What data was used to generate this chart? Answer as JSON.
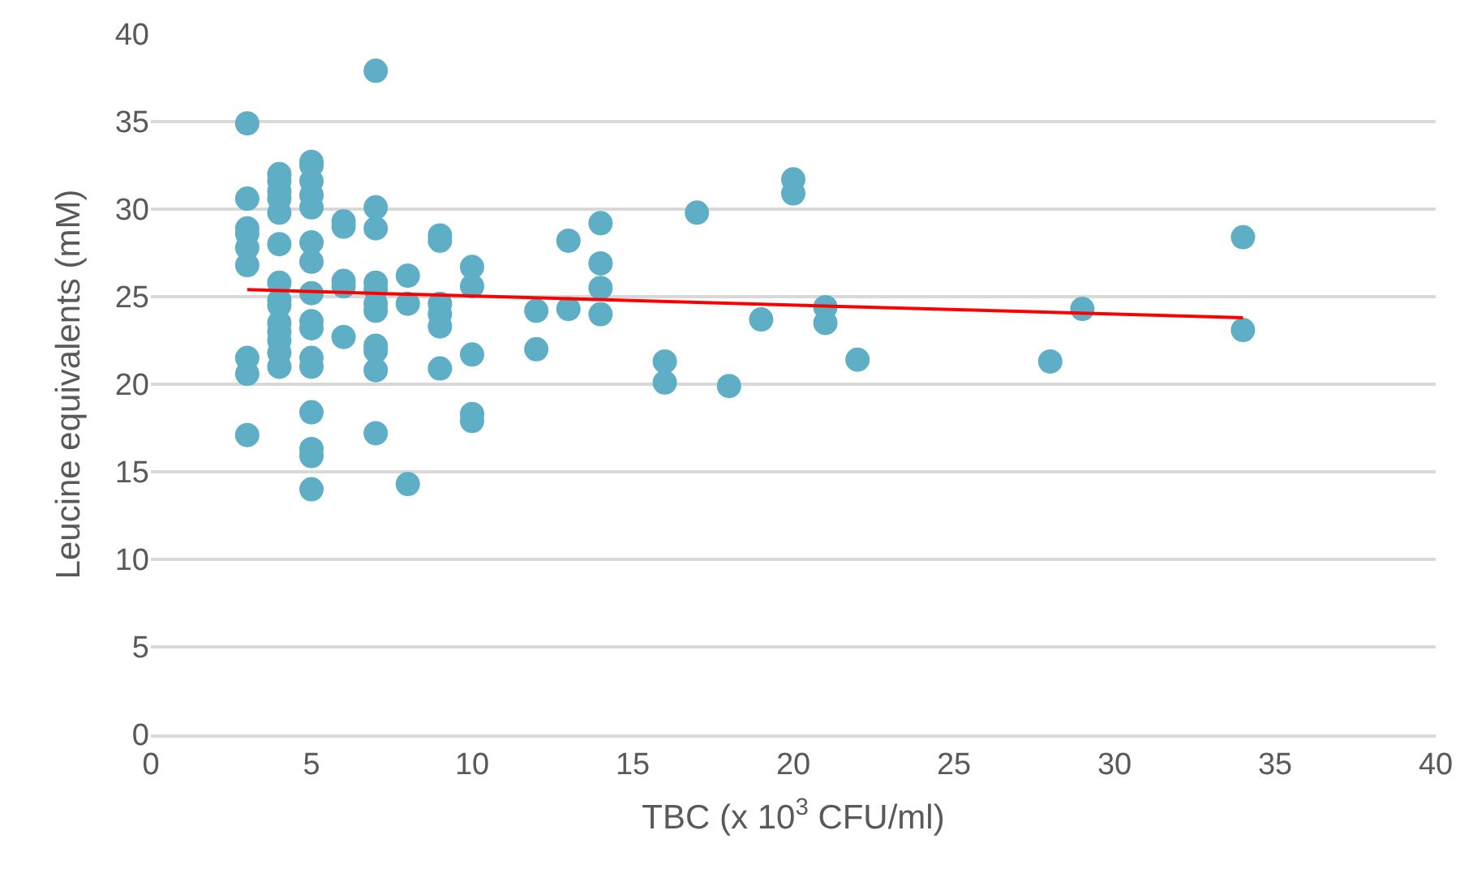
{
  "chart_data": {
    "type": "scatter",
    "xlabel": "TBC (x 10$^{3}$ CFU/ml)",
    "ylabel": "Leucine equivalents (mM)",
    "xlim": [
      0,
      40
    ],
    "xticks": [
      0,
      5,
      10,
      15,
      20,
      25,
      30,
      35,
      40
    ],
    "ylim": [
      0,
      40
    ],
    "yticks": [
      0,
      5,
      10,
      15,
      20,
      25,
      30,
      35,
      40
    ],
    "grid": "y",
    "marker": "circle",
    "series": [
      {
        "color": "#5eaec6",
        "x": [
          3,
          3,
          3,
          3,
          3,
          3,
          3,
          3,
          3,
          4,
          4,
          4,
          4,
          4,
          4,
          4,
          4,
          4,
          4,
          4,
          4,
          4,
          4,
          5,
          5,
          5,
          5,
          5,
          5,
          5,
          5,
          5,
          5,
          5,
          5,
          5,
          5,
          5,
          5,
          6,
          6,
          6,
          6,
          6,
          7,
          7,
          7,
          7,
          7,
          7,
          7,
          7,
          7,
          7,
          7,
          8,
          8,
          8,
          9,
          9,
          9,
          9,
          9,
          9,
          10,
          10,
          10,
          10,
          10,
          12,
          12,
          13,
          13,
          14,
          14,
          14,
          14,
          16,
          16,
          17,
          18,
          19,
          20,
          20,
          21,
          21,
          22,
          28,
          29,
          34,
          34
        ],
        "values": [
          34.9,
          30.6,
          28.9,
          28.6,
          27.8,
          26.8,
          21.5,
          20.6,
          17.1,
          32.0,
          31.6,
          31.0,
          30.6,
          29.8,
          28.0,
          25.8,
          24.8,
          24.5,
          23.5,
          23.0,
          22.5,
          21.8,
          21.0,
          32.7,
          32.5,
          31.6,
          30.8,
          30.1,
          28.1,
          27.0,
          25.2,
          23.6,
          23.2,
          21.5,
          21.0,
          18.4,
          16.3,
          15.9,
          14.0,
          29.3,
          29.0,
          25.9,
          25.6,
          22.7,
          37.9,
          30.1,
          28.9,
          25.8,
          25.4,
          24.6,
          24.2,
          22.2,
          21.9,
          20.8,
          17.2,
          26.2,
          24.6,
          14.3,
          28.5,
          28.2,
          24.6,
          24.0,
          23.3,
          20.9,
          26.7,
          25.6,
          21.7,
          18.3,
          17.9,
          24.2,
          22.0,
          28.2,
          24.3,
          29.2,
          26.9,
          25.5,
          24.0,
          21.3,
          20.1,
          29.8,
          19.9,
          23.7,
          31.7,
          30.9,
          24.4,
          23.5,
          21.4,
          21.3,
          24.3,
          28.4,
          23.1
        ]
      },
      {
        "type": "line",
        "color": "#ff0000",
        "marker": "none",
        "line_style": "solid",
        "x": [
          3,
          34
        ],
        "values": [
          25.4,
          23.8
        ]
      }
    ]
  }
}
